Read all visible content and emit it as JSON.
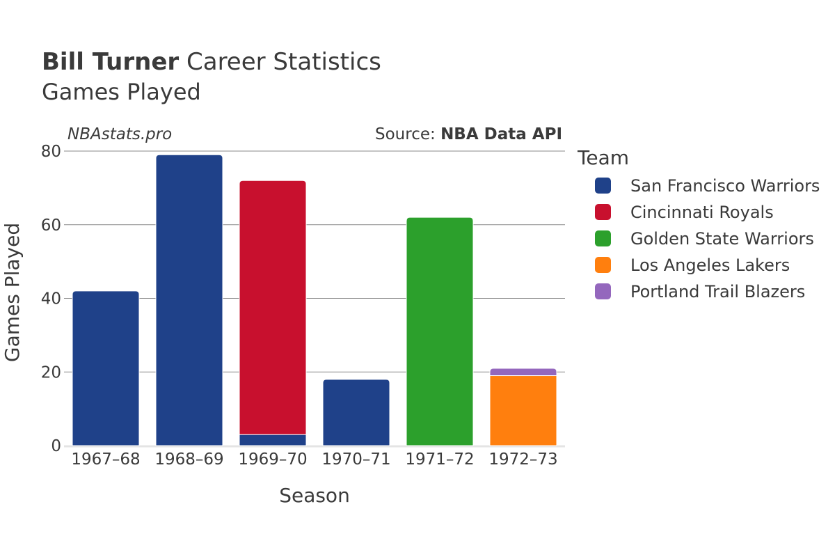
{
  "header": {
    "title_bold": "Bill Turner",
    "title_rest": " Career Statistics",
    "subtitle": "Games Played"
  },
  "watermark": "NBAstats.pro",
  "source": {
    "prefix": "Source: ",
    "name": "NBA Data API"
  },
  "legend": {
    "title": "Team"
  },
  "chart_data": {
    "type": "bar",
    "stacked": true,
    "title": "Bill Turner Career Statistics",
    "subtitle": "Games Played",
    "xlabel": "Season",
    "ylabel": "Games Played",
    "categories": [
      "1967–68",
      "1968–69",
      "1969–70",
      "1970–71",
      "1971–72",
      "1972–73"
    ],
    "ylim": [
      0,
      80
    ],
    "yticks": [
      0,
      20,
      40,
      60,
      80
    ],
    "grid": true,
    "legend_position": "right",
    "series": [
      {
        "name": "San Francisco Warriors",
        "color": "#1f4189",
        "values": [
          42,
          79,
          3,
          18,
          0,
          0
        ]
      },
      {
        "name": "Cincinnati Royals",
        "color": "#c8102e",
        "values": [
          0,
          0,
          69,
          0,
          0,
          0
        ]
      },
      {
        "name": "Golden State Warriors",
        "color": "#2ca02c",
        "values": [
          0,
          0,
          0,
          0,
          62,
          0
        ]
      },
      {
        "name": "Los Angeles Lakers",
        "color": "#ff7f0e",
        "values": [
          0,
          0,
          0,
          0,
          0,
          19
        ]
      },
      {
        "name": "Portland Trail Blazers",
        "color": "#9467bd",
        "values": [
          0,
          0,
          0,
          0,
          0,
          2
        ]
      }
    ]
  }
}
